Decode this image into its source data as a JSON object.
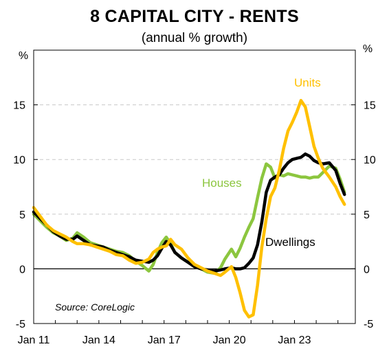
{
  "chart_data": {
    "type": "line",
    "title": "8 CAPITAL CITY - RENTS",
    "subtitle": "(annual % growth)",
    "ylabel_left": "%",
    "ylabel_right": "%",
    "ylim": [
      -5,
      20
    ],
    "yticks": [
      -5,
      0,
      5,
      10,
      15
    ],
    "xlim": [
      2011.0,
      2025.8
    ],
    "xticks": [
      {
        "label": "Jan 11",
        "value": 2011.0
      },
      {
        "label": "Jan 14",
        "value": 2014.0
      },
      {
        "label": "Jan 17",
        "value": 2017.0
      },
      {
        "label": "Jan 20",
        "value": 2020.0
      },
      {
        "label": "Jan 23",
        "value": 2023.0
      }
    ],
    "grid": "horizontal dashed",
    "source": "Source: CoreLogic",
    "series": [
      {
        "name": "Houses",
        "color": "#8cc63f",
        "x": [
          2011.0,
          2011.3,
          2011.6,
          2011.9,
          2012.2,
          2012.5,
          2012.8,
          2013.0,
          2013.3,
          2013.6,
          2013.9,
          2014.2,
          2014.5,
          2014.8,
          2015.1,
          2015.4,
          2015.7,
          2016.0,
          2016.3,
          2016.5,
          2016.7,
          2016.9,
          2017.1,
          2017.3,
          2017.5,
          2017.8,
          2018.1,
          2018.4,
          2018.7,
          2019.0,
          2019.3,
          2019.6,
          2019.8,
          2020.1,
          2020.3,
          2020.5,
          2020.7,
          2020.9,
          2021.1,
          2021.3,
          2021.5,
          2021.7,
          2021.9,
          2022.1,
          2022.3,
          2022.5,
          2022.7,
          2022.9,
          2023.1,
          2023.3,
          2023.5,
          2023.7,
          2023.9,
          2024.1,
          2024.3,
          2024.6,
          2024.9,
          2025.1,
          2025.3
        ],
        "values": [
          5.0,
          4.4,
          3.8,
          3.3,
          3.0,
          2.6,
          2.8,
          3.3,
          2.9,
          2.4,
          2.2,
          2.0,
          1.8,
          1.6,
          1.5,
          1.2,
          0.7,
          0.3,
          -0.2,
          0.4,
          1.5,
          2.4,
          2.9,
          2.3,
          1.5,
          1.0,
          0.6,
          0.2,
          0.0,
          -0.3,
          -0.4,
          0.1,
          0.9,
          1.8,
          1.1,
          1.9,
          2.9,
          3.8,
          4.6,
          6.5,
          8.3,
          9.6,
          9.3,
          8.3,
          8.6,
          8.5,
          8.7,
          8.6,
          8.5,
          8.4,
          8.4,
          8.3,
          8.4,
          8.4,
          8.8,
          9.4,
          9.2,
          8.2,
          7.0
        ]
      },
      {
        "name": "Dwellings",
        "color": "#000000",
        "x": [
          2011.0,
          2011.3,
          2011.6,
          2011.9,
          2012.2,
          2012.5,
          2012.8,
          2013.0,
          2013.3,
          2013.6,
          2013.9,
          2014.2,
          2014.5,
          2014.8,
          2015.1,
          2015.4,
          2015.7,
          2016.0,
          2016.3,
          2016.5,
          2016.7,
          2016.9,
          2017.1,
          2017.3,
          2017.5,
          2017.8,
          2018.1,
          2018.4,
          2018.7,
          2019.0,
          2019.3,
          2019.6,
          2019.8,
          2020.1,
          2020.3,
          2020.5,
          2020.7,
          2020.9,
          2021.1,
          2021.3,
          2021.5,
          2021.7,
          2021.9,
          2022.1,
          2022.3,
          2022.5,
          2022.7,
          2022.9,
          2023.1,
          2023.3,
          2023.5,
          2023.7,
          2023.9,
          2024.1,
          2024.3,
          2024.6,
          2024.9,
          2025.1,
          2025.3
        ],
        "values": [
          5.2,
          4.6,
          4.0,
          3.4,
          3.0,
          2.7,
          2.7,
          3.0,
          2.6,
          2.2,
          2.1,
          2.0,
          1.7,
          1.5,
          1.3,
          1.1,
          0.8,
          0.7,
          0.6,
          0.8,
          1.2,
          1.9,
          2.5,
          2.2,
          1.5,
          1.0,
          0.6,
          0.2,
          0.0,
          -0.1,
          -0.2,
          -0.1,
          0.0,
          0.1,
          0.0,
          0.0,
          0.1,
          0.5,
          1.0,
          2.2,
          4.3,
          7.0,
          8.1,
          8.4,
          8.6,
          9.2,
          9.7,
          10.0,
          10.1,
          10.2,
          10.5,
          10.3,
          9.9,
          9.7,
          9.6,
          9.7,
          9.0,
          7.8,
          6.8
        ]
      },
      {
        "name": "Units",
        "color": "#ffc000",
        "x": [
          2011.0,
          2011.3,
          2011.6,
          2011.9,
          2012.2,
          2012.5,
          2012.8,
          2013.0,
          2013.3,
          2013.6,
          2013.9,
          2014.2,
          2014.5,
          2014.8,
          2015.1,
          2015.4,
          2015.7,
          2016.0,
          2016.3,
          2016.5,
          2016.7,
          2016.9,
          2017.1,
          2017.3,
          2017.5,
          2017.8,
          2018.1,
          2018.4,
          2018.7,
          2019.0,
          2019.3,
          2019.6,
          2019.8,
          2020.1,
          2020.3,
          2020.5,
          2020.7,
          2020.9,
          2021.1,
          2021.3,
          2021.5,
          2021.7,
          2021.9,
          2022.1,
          2022.3,
          2022.5,
          2022.7,
          2022.9,
          2023.1,
          2023.3,
          2023.5,
          2023.7,
          2023.9,
          2024.1,
          2024.3,
          2024.6,
          2024.9,
          2025.1,
          2025.3
        ],
        "values": [
          5.6,
          4.8,
          4.0,
          3.5,
          3.2,
          2.9,
          2.5,
          2.3,
          2.3,
          2.2,
          2.0,
          1.8,
          1.6,
          1.3,
          1.2,
          0.8,
          0.5,
          0.6,
          0.9,
          1.5,
          1.8,
          2.0,
          2.1,
          2.7,
          2.2,
          1.8,
          1.0,
          0.4,
          0.1,
          -0.2,
          -0.4,
          -0.6,
          -0.3,
          0.2,
          -0.8,
          -2.2,
          -3.8,
          -4.4,
          -4.2,
          -1.5,
          2.0,
          4.6,
          6.6,
          7.4,
          9.0,
          11.0,
          12.6,
          13.4,
          14.3,
          15.4,
          14.8,
          13.0,
          11.2,
          10.1,
          9.2,
          8.4,
          7.5,
          6.6,
          5.9
        ]
      }
    ],
    "annotations": [
      {
        "text": "Units",
        "series": "Units"
      },
      {
        "text": "Houses",
        "series": "Houses"
      },
      {
        "text": "Dwellings",
        "series": "Dwellings"
      }
    ]
  }
}
